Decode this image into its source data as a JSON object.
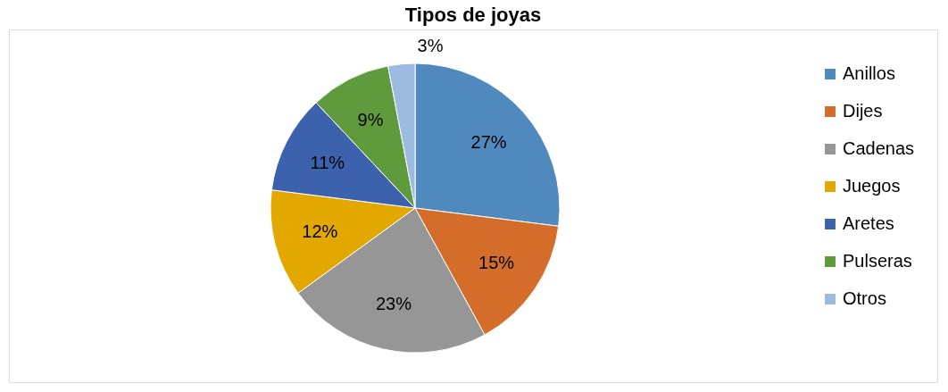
{
  "chart_data": {
    "type": "pie",
    "title": "Tipos de joyas",
    "categories": [
      "Anillos",
      "Dijes",
      "Cadenas",
      "Juegos",
      "Aretes",
      "Pulseras",
      "Otros"
    ],
    "values": [
      27,
      15,
      23,
      12,
      11,
      9,
      3
    ],
    "colors": [
      "#4f89bd",
      "#d46d2a",
      "#969696",
      "#e2a800",
      "#3d62ad",
      "#5f9a3c",
      "#9bbbe0"
    ],
    "value_labels": [
      "27%",
      "15%",
      "23%",
      "12%",
      "11%",
      "9%",
      "3%"
    ],
    "legend": "right"
  }
}
